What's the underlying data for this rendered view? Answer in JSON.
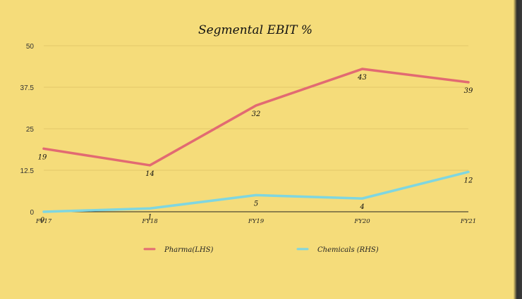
{
  "chart_data": {
    "type": "line",
    "title": "Segmental EBIT %",
    "categories": [
      "FY17",
      "FY18",
      "FY19",
      "FY20",
      "FY21"
    ],
    "ylim": [
      0,
      50
    ],
    "yticks": [
      0,
      12.5,
      25,
      37.5,
      50
    ],
    "ytick_labels": [
      "0",
      "12.5",
      "25",
      "37.5",
      "50"
    ],
    "grid": true,
    "legend_position": "bottom",
    "series": [
      {
        "name": "Pharma(LHS)",
        "color": "#e26a72",
        "values": [
          19,
          14,
          32,
          43,
          39
        ],
        "labels": [
          "19",
          "14",
          "32",
          "43",
          "39"
        ]
      },
      {
        "name": "Chemicals (RHS)",
        "color": "#7fd6e0",
        "values": [
          0,
          1,
          5,
          4,
          12
        ],
        "labels": [
          "0",
          "1",
          "5",
          "4",
          "12"
        ]
      }
    ]
  }
}
